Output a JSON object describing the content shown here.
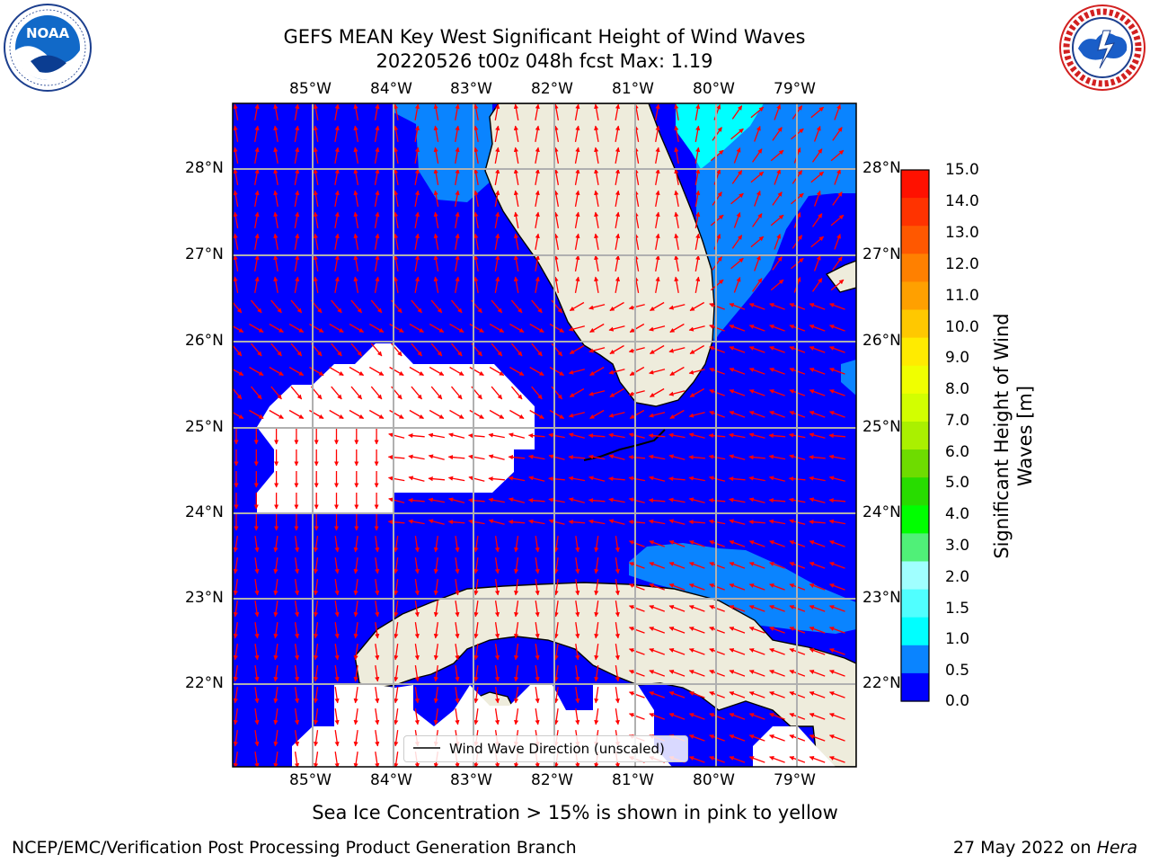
{
  "header": {
    "title_line1": "GEFS MEAN Key West Significant Height of Wind Waves",
    "title_line2": "20220526 t00z 048h fcst   Max: 1.19"
  },
  "logos": {
    "left": {
      "name": "NOAA",
      "ring_text": "NATIONAL OCEANIC AND ATMOSPHERIC ADMINISTRATION · U.S. DEPARTMENT OF COMMERCE"
    },
    "right": {
      "ring_text": "NATIONAL WEATHER SERVICE"
    }
  },
  "map": {
    "lon_labels": [
      "85°W",
      "84°W",
      "83°W",
      "82°W",
      "81°W",
      "80°W",
      "79°W"
    ],
    "lat_labels_left": [
      "28°N",
      "27°N",
      "26°N",
      "25°N",
      "24°N",
      "23°N",
      "22°N"
    ],
    "lat_labels_right": [
      "28°N",
      "27°N",
      "26°N",
      "25°N",
      "24°N",
      "23°N",
      "22°N"
    ],
    "legend_label": "Wind Wave Direction (unscaled)",
    "colors": {
      "ocean_low": "#0000ff",
      "ocean_mid": "#0a84ff",
      "ocean_high": "#00ffff",
      "land": "#eeecdc",
      "arrow": "#ff0000",
      "grid": "#b0b0b0"
    }
  },
  "colorbar": {
    "label": "Significant Height of Wind Waves [m]",
    "ticks": [
      "15.0",
      "14.0",
      "13.0",
      "12.0",
      "11.0",
      "10.0",
      "9.0",
      "8.0",
      "7.0",
      "6.0",
      "5.0",
      "4.0",
      "3.0",
      "2.0",
      "1.5",
      "1.0",
      "0.5",
      "0.0"
    ],
    "colors": [
      "#ff1100",
      "#ff3300",
      "#ff5800",
      "#ff8000",
      "#ffa000",
      "#ffc800",
      "#ffeb00",
      "#f0ff00",
      "#d2ff00",
      "#aaf000",
      "#6edc00",
      "#28dc00",
      "#00ff00",
      "#50f078",
      "#a0ffff",
      "#50ffff",
      "#00ffff",
      "#0a84ff",
      "#0000ff"
    ]
  },
  "caption": "Sea Ice Concentration > 15% is shown in pink to yellow",
  "footer": {
    "left": "NCEP/EMC/Verification Post Processing Product Generation Branch",
    "right_prefix": "27 May 2022 on ",
    "right_host": "Hera"
  }
}
